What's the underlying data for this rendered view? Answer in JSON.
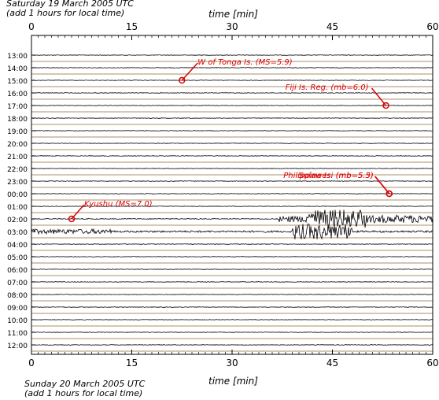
{
  "header": {
    "top_line1": "Saturday 19 March 2005 UTC",
    "top_line2": "(add 1 hours for local time)",
    "bottom_line1": "Sunday 20 March 2005 UTC",
    "bottom_line2": "(add 1 hours for local time)"
  },
  "colors": {
    "frame": "#000000",
    "trace": "#000000",
    "separator": "#8b6a35",
    "event": "#dd0000",
    "background": "#ffffff"
  },
  "chart_data": {
    "type": "seismogram",
    "xlabel": "time [min]",
    "xlim": [
      0,
      60
    ],
    "x_ticks": [
      0,
      15,
      30,
      45,
      60
    ],
    "hour_labels": [
      "13:00",
      "14:00",
      "15:00",
      "16:00",
      "17:00",
      "18:00",
      "19:00",
      "20:00",
      "21:00",
      "22:00",
      "23:00",
      "00:00",
      "01:00",
      "02:00",
      "03:00",
      "04:00",
      "05:00",
      "06:00",
      "07:00",
      "08:00",
      "09:00",
      "10:00",
      "11:00",
      "12:00"
    ],
    "events": [
      {
        "label": "W of Tonga Is. (MS=5.9)",
        "row": 2,
        "minute": 22.5
      },
      {
        "label": "Fiji Is. Reg. (mb=6.0)",
        "row": 4,
        "minute": 53.0
      },
      {
        "label": "Philippine Is. (mb=5.3)",
        "row": 11,
        "minute": 53.5
      },
      {
        "label": "Sulawesi (mb=5.5)",
        "row": 11,
        "minute": 53.5
      },
      {
        "label": "Kyushu (MS=7.0)",
        "row": 13,
        "minute": 6.0
      }
    ],
    "grid": false
  }
}
